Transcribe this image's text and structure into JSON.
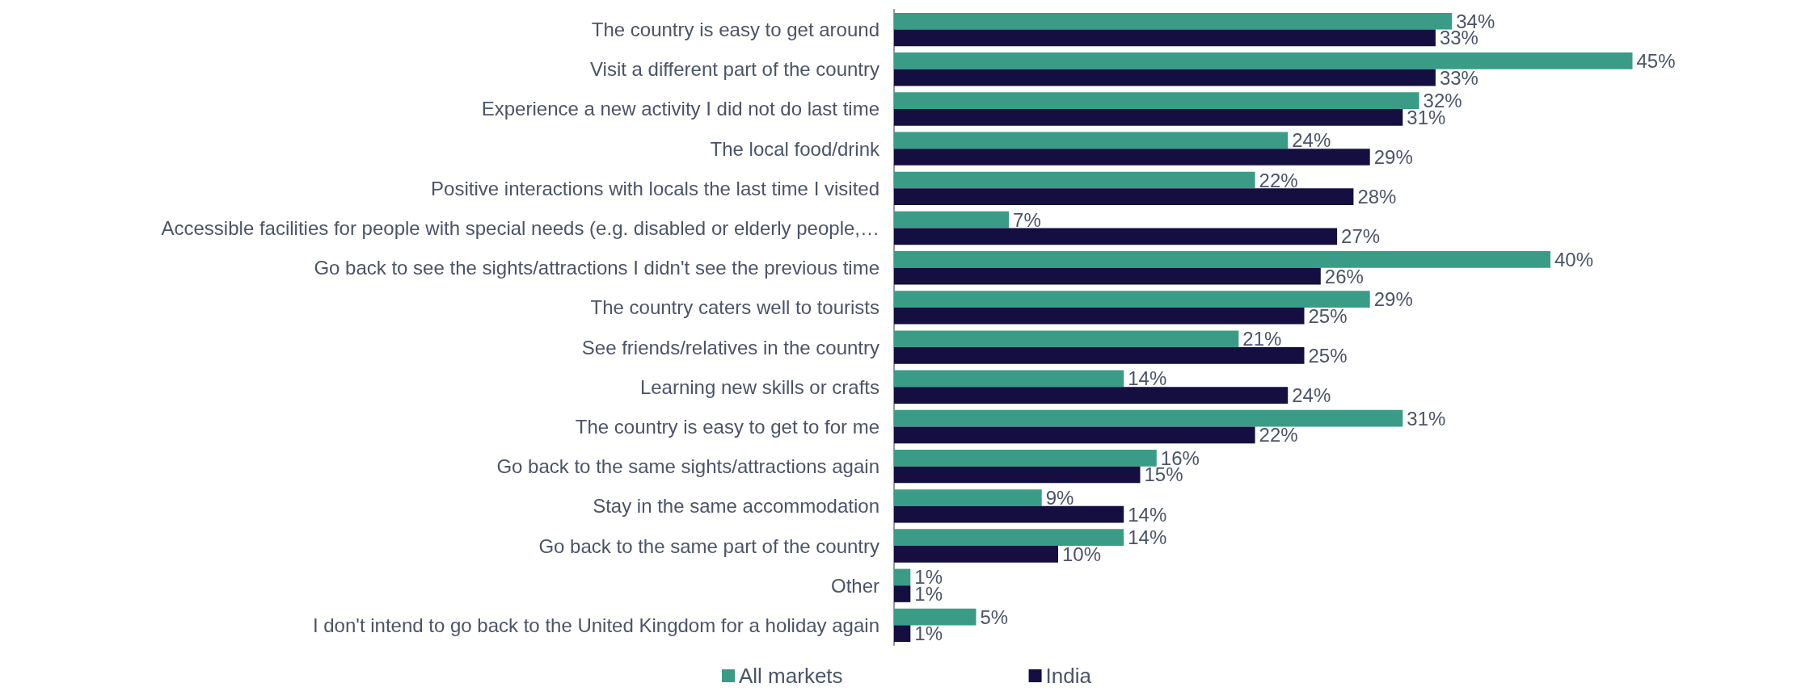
{
  "chart_data": {
    "type": "bar",
    "orientation": "horizontal",
    "categories": [
      "The country is easy to get around",
      "Visit a different part of the country",
      "Experience a new activity I did not do last time",
      "The local food/drink",
      "Positive interactions with locals the last time I visited",
      "Accessible facilities for people with special needs (e.g. disabled or elderly people,…",
      "Go back to see the sights/attractions I didn't see the previous time",
      "The country caters well to tourists",
      "See friends/relatives in the country",
      "Learning new skills or crafts",
      "The country is easy to get to for me",
      "Go back to the same sights/attractions again",
      "Stay in the same accommodation",
      "Go back to the same part of the country",
      "Other",
      "I don't intend to go back to the United Kingdom for a holiday again"
    ],
    "series": [
      {
        "name": "All markets",
        "color": "#3a9c86",
        "values": [
          34,
          45,
          32,
          24,
          22,
          7,
          40,
          29,
          21,
          14,
          31,
          16,
          9,
          14,
          1,
          5
        ],
        "value_labels": [
          "34%",
          "45%",
          "32%",
          "24%",
          "22%",
          "7%",
          "40%",
          "29%",
          "21%",
          "14%",
          "31%",
          "16%",
          "9%",
          "14%",
          "1%",
          "5%"
        ]
      },
      {
        "name": "India",
        "color": "#140f40",
        "values": [
          33,
          33,
          31,
          29,
          28,
          27,
          26,
          25,
          25,
          24,
          22,
          15,
          14,
          10,
          1,
          1
        ],
        "value_labels": [
          "33%",
          "33%",
          "31%",
          "29%",
          "28%",
          "27%",
          "26%",
          "25%",
          "25%",
          "24%",
          "22%",
          "15%",
          "14%",
          "10%",
          "1%",
          "1%"
        ]
      }
    ],
    "legend": "bottom",
    "grid": false
  }
}
